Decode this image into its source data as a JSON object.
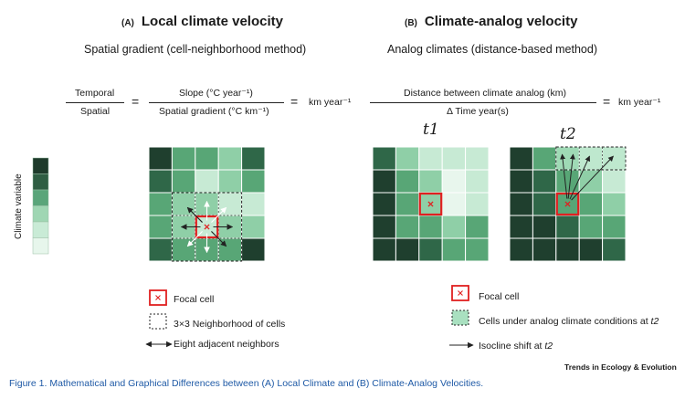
{
  "panel_a": {
    "letter": "(A)",
    "title": "Local climate velocity",
    "subtitle": "Spatial gradient (cell-neighborhood method)",
    "eq_top1": "Temporal",
    "eq_bottom1": "Spatial",
    "eq_top2": "Slope (°C year⁻¹)",
    "eq_bottom2": "Spatial gradient (°C km⁻¹)",
    "equals": "=",
    "result": "km year⁻¹"
  },
  "panel_b": {
    "letter": "(B)",
    "title": "Climate-analog velocity",
    "subtitle": "Analog climates (distance-based method)",
    "eq_top": "Distance between climate analog (km)",
    "eq_bottom": "Δ Time year(s)",
    "equals": "=",
    "result": "km year⁻¹",
    "t1_label": "t1",
    "t2_label": "t2"
  },
  "colorbar": {
    "label": "Climate variable",
    "colors": [
      "#1e3b2b",
      "#2f5e43",
      "#5aa57a",
      "#9fd6b3",
      "#c9ebd6",
      "#e7f6ec"
    ]
  },
  "palette": {
    "c1": "#e8f6ed",
    "c2": "#c7ead4",
    "c3": "#8fcfa7",
    "c4": "#58a676",
    "c5": "#2f6748",
    "c6": "#1f3f2e",
    "focal": "#e02020"
  },
  "grid_a": [
    [
      6,
      4,
      4,
      3,
      5
    ],
    [
      5,
      4,
      2,
      3,
      4
    ],
    [
      4,
      3,
      3,
      2,
      2
    ],
    [
      4,
      3,
      2,
      3,
      3
    ],
    [
      5,
      4,
      4,
      4,
      6
    ]
  ],
  "grid_t1": [
    [
      5,
      3,
      2,
      2,
      2
    ],
    [
      6,
      4,
      3,
      1,
      2
    ],
    [
      6,
      4,
      3,
      1,
      2
    ],
    [
      6,
      4,
      4,
      3,
      4
    ],
    [
      6,
      6,
      5,
      4,
      4
    ]
  ],
  "grid_t2": [
    [
      6,
      4,
      3,
      2,
      2
    ],
    [
      6,
      5,
      4,
      3,
      2
    ],
    [
      6,
      5,
      4,
      4,
      3
    ],
    [
      6,
      6,
      5,
      4,
      4
    ],
    [
      6,
      6,
      6,
      6,
      5
    ]
  ],
  "legend_a": {
    "focal": "Focal cell",
    "neighborhood": "3×3 Neighborhood of cells",
    "neighbors": "Eight adjacent neighbors"
  },
  "legend_b": {
    "focal": "Focal cell",
    "analog_prefix": "Cells under analog climate conditions at ",
    "analog_time": "t2",
    "isocline_prefix": "Isocline shift at ",
    "isocline_time": "t2"
  },
  "brand": "Trends in Ecology & Evolution",
  "caption": "Figure 1. Mathematical and Graphical Differences between (A) Local Climate and (B) Climate-Analog Velocities."
}
